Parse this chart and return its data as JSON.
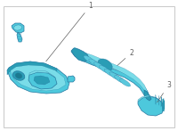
{
  "bg_color": "#ffffff",
  "border_color": "#c8c8c8",
  "part_color": "#4dc8dc",
  "part_color_light": "#7adce8",
  "part_color_dark": "#2a9db5",
  "part_color_shadow": "#1a7a90",
  "outline_color": "#2878a0",
  "label_color": "#606060",
  "figsize": [
    2.0,
    1.47
  ],
  "dpi": 100
}
